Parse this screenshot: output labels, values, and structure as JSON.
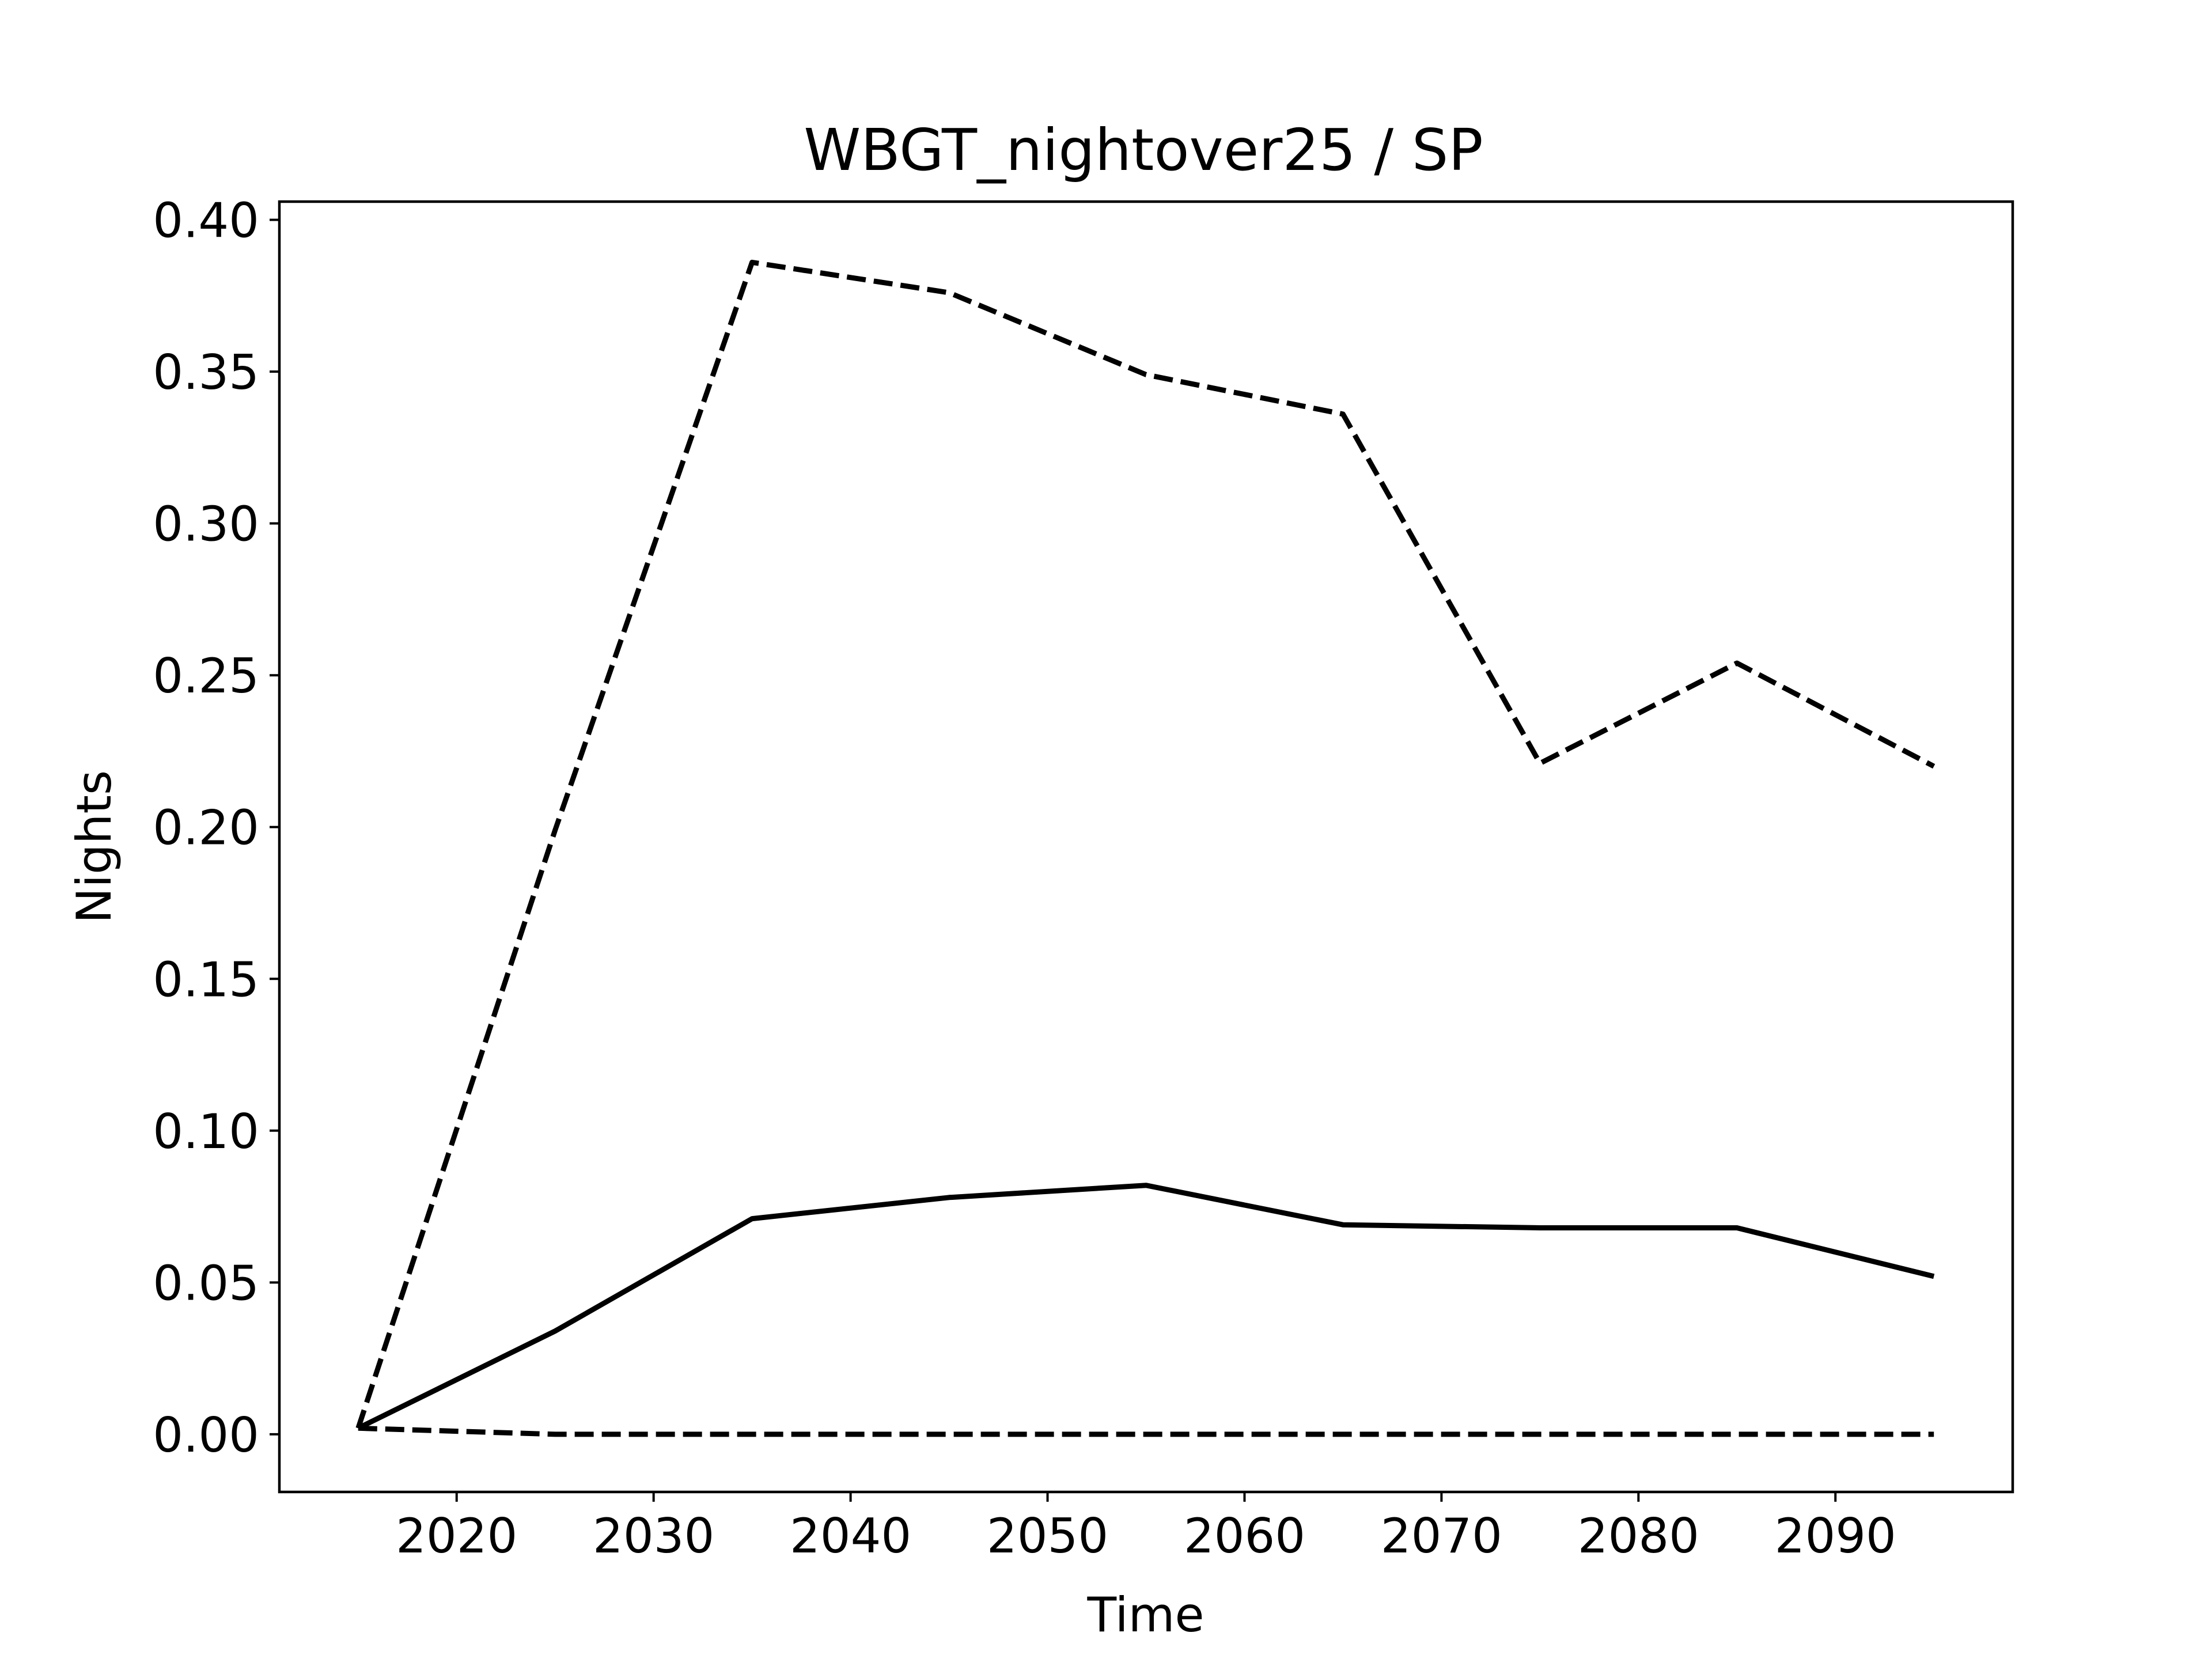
{
  "chart_data": {
    "type": "line",
    "title": "WBGT_nightover25 / SP",
    "xlabel": "Time",
    "ylabel": "Nights",
    "xlim": [
      2011,
      2099
    ],
    "ylim": [
      -0.019,
      0.406
    ],
    "xticks": [
      2020,
      2030,
      2040,
      2050,
      2060,
      2070,
      2080,
      2090
    ],
    "yticks": [
      "0.00",
      "0.05",
      "0.10",
      "0.15",
      "0.20",
      "0.25",
      "0.30",
      "0.35",
      "0.40"
    ],
    "grid": false,
    "legend": "none",
    "x": [
      2015,
      2025,
      2035,
      2045,
      2055,
      2065,
      2075,
      2085,
      2095
    ],
    "series": [
      {
        "values": [
          0.002,
          0.034,
          0.071,
          0.078,
          0.082,
          0.069,
          0.068,
          0.068,
          0.052
        ],
        "style": "solid",
        "color": "#000000"
      },
      {
        "values": [
          0.002,
          0.199,
          0.386,
          0.376,
          0.349,
          0.336,
          0.221,
          0.254,
          0.22
        ],
        "style": "dashed",
        "color": "#000000"
      },
      {
        "values": [
          0.002,
          0.0,
          0.0,
          0.0,
          0.0,
          0.0,
          0.0,
          0.0,
          0.0
        ],
        "style": "dashed",
        "color": "#000000"
      }
    ]
  }
}
